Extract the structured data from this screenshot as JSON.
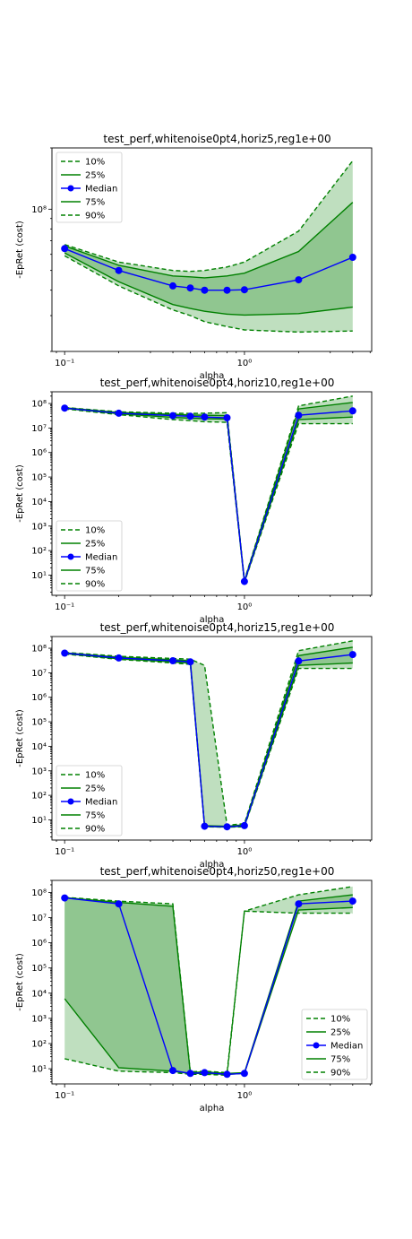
{
  "chart_data": [
    {
      "type": "line",
      "title": "test_perf,whitenoise0pt4,horiz5,reg1e+00",
      "xlabel": "alpha",
      "ylabel": "-EpRet (cost)",
      "xscale": "log",
      "yscale": "log",
      "xlim": [
        0.085,
        5.1
      ],
      "ylim": [
        20000000,
        200000000
      ],
      "xticks": [
        {
          "v": 0.1,
          "label": "10⁻¹"
        },
        {
          "v": 1,
          "label": "10⁰"
        }
      ],
      "yticks": [
        {
          "v": 100000000,
          "label": "10⁸"
        }
      ],
      "legend_position": "upper-left",
      "x": [
        0.1,
        0.2,
        0.4,
        0.5,
        0.6,
        0.8,
        1.0,
        2.0,
        4.0
      ],
      "series": [
        {
          "name": "10%",
          "style": "dashed",
          "values": [
            59000000,
            42000000,
            32000000,
            30000000,
            28000000,
            26500000,
            25500000,
            24900000,
            25200000
          ]
        },
        {
          "name": "25%",
          "style": "solid",
          "values": [
            61000000,
            44000000,
            34000000,
            32500000,
            31500000,
            30500000,
            30200000,
            30700000,
            33000000
          ]
        },
        {
          "name": "Median",
          "style": "marker",
          "values": [
            64000000,
            50000000,
            42000000,
            41000000,
            40000000,
            40000000,
            40200000,
            45000000,
            58000000
          ]
        },
        {
          "name": "75%",
          "style": "solid",
          "values": [
            66000000,
            53000000,
            47000000,
            46500000,
            46000000,
            47000000,
            48500000,
            62000000,
            108000000
          ]
        },
        {
          "name": "90%",
          "style": "dashed",
          "values": [
            67000000,
            55000000,
            50000000,
            49500000,
            50000000,
            52000000,
            55000000,
            78000000,
            173000000
          ]
        }
      ]
    },
    {
      "type": "line",
      "title": "test_perf,whitenoise0pt4,horiz10,reg1e+00",
      "xlabel": "alpha",
      "ylabel": "-EpRet (cost)",
      "xscale": "log",
      "yscale": "log",
      "xlim": [
        0.085,
        5.1
      ],
      "ylim": [
        1.5,
        300000000
      ],
      "xticks": [
        {
          "v": 0.1,
          "label": "10⁻¹"
        },
        {
          "v": 1,
          "label": "10⁰"
        }
      ],
      "yticks": [
        {
          "v": 10,
          "label": "10¹"
        },
        {
          "v": 100,
          "label": "10²"
        },
        {
          "v": 1000,
          "label": "10³"
        },
        {
          "v": 10000,
          "label": "10⁴"
        },
        {
          "v": 100000,
          "label": "10⁵"
        },
        {
          "v": 1000000,
          "label": "10⁶"
        },
        {
          "v": 10000000,
          "label": "10⁷"
        },
        {
          "v": 100000000,
          "label": "10⁸"
        }
      ],
      "legend_position": "lower-left",
      "x": [
        0.1,
        0.2,
        0.4,
        0.5,
        0.6,
        0.8,
        1.0,
        2.0,
        4.0
      ],
      "series": [
        {
          "name": "10%",
          "style": "dashed",
          "values": [
            60000000,
            35000000,
            22000000,
            20000000,
            18000000,
            17000000,
            5,
            15000000,
            15000000
          ]
        },
        {
          "name": "25%",
          "style": "solid",
          "values": [
            63000000,
            38000000,
            27000000,
            25000000,
            24000000,
            23000000,
            5.2,
            22000000,
            28000000
          ]
        },
        {
          "name": "Median",
          "style": "marker",
          "values": [
            65000000,
            40000000,
            32000000,
            30000000,
            28000000,
            26000000,
            5.5,
            33000000,
            50000000
          ]
        },
        {
          "name": "75%",
          "style": "solid",
          "values": [
            67000000,
            43000000,
            36000000,
            34000000,
            33000000,
            32000000,
            5.8,
            60000000,
            110000000
          ]
        },
        {
          "name": "90%",
          "style": "dashed",
          "values": [
            69000000,
            46000000,
            40000000,
            39000000,
            40000000,
            42000000,
            6.2,
            80000000,
            200000000
          ]
        }
      ]
    },
    {
      "type": "line",
      "title": "test_perf,whitenoise0pt4,horiz15,reg1e+00",
      "xlabel": "alpha",
      "ylabel": "-EpRet (cost)",
      "xscale": "log",
      "yscale": "log",
      "xlim": [
        0.085,
        5.1
      ],
      "ylim": [
        1.5,
        300000000
      ],
      "xticks": [
        {
          "v": 0.1,
          "label": "10⁻¹"
        },
        {
          "v": 1,
          "label": "10⁰"
        }
      ],
      "yticks": [
        {
          "v": 10,
          "label": "10¹"
        },
        {
          "v": 100,
          "label": "10²"
        },
        {
          "v": 1000,
          "label": "10³"
        },
        {
          "v": 10000,
          "label": "10⁴"
        },
        {
          "v": 100000,
          "label": "10⁵"
        },
        {
          "v": 1000000,
          "label": "10⁶"
        },
        {
          "v": 10000000,
          "label": "10⁷"
        },
        {
          "v": 100000000,
          "label": "10⁸"
        }
      ],
      "legend_position": "lower-left",
      "x": [
        0.1,
        0.2,
        0.4,
        0.5,
        0.6,
        0.8,
        1.0,
        2.0,
        4.0
      ],
      "series": [
        {
          "name": "10%",
          "style": "dashed",
          "values": [
            58000000,
            35000000,
            25000000,
            22000000,
            5.2,
            5,
            5.2,
            15000000,
            15000000
          ]
        },
        {
          "name": "25%",
          "style": "solid",
          "values": [
            61000000,
            37000000,
            28000000,
            25000000,
            5.3,
            5.1,
            5.5,
            20000000,
            25000000
          ]
        },
        {
          "name": "Median",
          "style": "marker",
          "values": [
            63000000,
            40000000,
            31000000,
            28000000,
            5.5,
            5.2,
            5.8,
            30000000,
            55000000
          ]
        },
        {
          "name": "75%",
          "style": "solid",
          "values": [
            65000000,
            43000000,
            34000000,
            31000000,
            5.8,
            5.5,
            6.2,
            50000000,
            110000000
          ]
        },
        {
          "name": "90%",
          "style": "dashed",
          "values": [
            68000000,
            47000000,
            38000000,
            36000000,
            20000000,
            6,
            7,
            80000000,
            200000000
          ]
        }
      ]
    },
    {
      "type": "line",
      "title": "test_perf,whitenoise0pt4,horiz50,reg1e+00",
      "xlabel": "alpha",
      "ylabel": "-EpRet (cost)",
      "xscale": "log",
      "yscale": "log",
      "xlim": [
        0.085,
        5.1
      ],
      "ylim": [
        2.5,
        300000000
      ],
      "xticks": [
        {
          "v": 0.1,
          "label": "10⁻¹"
        },
        {
          "v": 1,
          "label": "10⁰"
        }
      ],
      "yticks": [
        {
          "v": 10,
          "label": "10¹"
        },
        {
          "v": 100,
          "label": "10²"
        },
        {
          "v": 1000,
          "label": "10³"
        },
        {
          "v": 10000,
          "label": "10⁴"
        },
        {
          "v": 100000,
          "label": "10⁵"
        },
        {
          "v": 1000000,
          "label": "10⁶"
        },
        {
          "v": 10000000,
          "label": "10⁷"
        },
        {
          "v": 100000000,
          "label": "10⁸"
        }
      ],
      "legend_position": "lower-right",
      "x": [
        0.1,
        0.2,
        0.4,
        0.5,
        0.6,
        0.8,
        1.0,
        2.0,
        4.0
      ],
      "series": [
        {
          "name": "10%",
          "style": "dashed",
          "values": [
            25,
            8,
            7,
            6,
            6,
            5.5,
            18000000,
            15000000,
            15000000
          ]
        },
        {
          "name": "25%",
          "style": "solid",
          "values": [
            6000,
            11,
            8,
            6.5,
            6.5,
            6,
            6.5,
            20000000,
            25000000
          ]
        },
        {
          "name": "Median",
          "style": "marker",
          "values": [
            60000000,
            35000000,
            8.5,
            6.5,
            7,
            6,
            6.5,
            35000000,
            45000000
          ]
        },
        {
          "name": "75%",
          "style": "solid",
          "values": [
            62000000,
            40000000,
            28000000,
            7,
            7.5,
            6.5,
            7,
            45000000,
            80000000
          ]
        },
        {
          "name": "90%",
          "style": "dashed",
          "values": [
            64000000,
            45000000,
            35000000,
            7.5,
            8,
            7,
            18000000,
            80000000,
            170000000
          ]
        }
      ]
    }
  ],
  "colors": {
    "band_outer": "#bfdfbf",
    "band_inner": "#90c690",
    "green_line": "#008000",
    "median_line": "#0000ff"
  }
}
